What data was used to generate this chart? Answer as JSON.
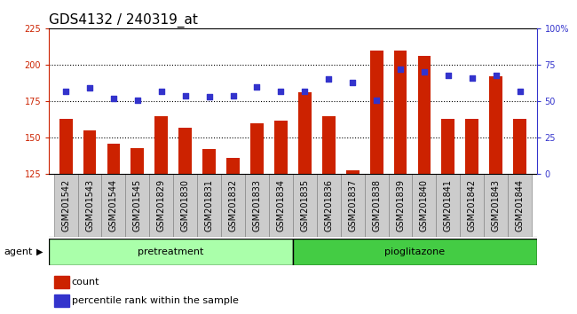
{
  "title": "GDS4132 / 240319_at",
  "categories": [
    "GSM201542",
    "GSM201543",
    "GSM201544",
    "GSM201545",
    "GSM201829",
    "GSM201830",
    "GSM201831",
    "GSM201832",
    "GSM201833",
    "GSM201834",
    "GSM201835",
    "GSM201836",
    "GSM201837",
    "GSM201838",
    "GSM201839",
    "GSM201840",
    "GSM201841",
    "GSM201842",
    "GSM201843",
    "GSM201844"
  ],
  "bar_values": [
    163,
    155,
    146,
    143,
    165,
    157,
    142,
    136,
    160,
    162,
    181,
    165,
    128,
    210,
    210,
    206,
    163,
    163,
    192,
    163
  ],
  "dot_values": [
    57,
    59,
    52,
    51,
    57,
    54,
    53,
    54,
    60,
    57,
    57,
    65,
    63,
    51,
    72,
    70,
    68,
    66,
    68,
    57
  ],
  "bar_color": "#cc2200",
  "dot_color": "#3333cc",
  "pretreatment_label": "pretreatment",
  "pioglitazone_label": "pioglitazone",
  "n_pretreatment": 10,
  "n_pioglitazone": 10,
  "agent_label": "agent",
  "legend_count": "count",
  "legend_percentile": "percentile rank within the sample",
  "ylim_left": [
    125,
    225
  ],
  "ylim_right": [
    0,
    100
  ],
  "yticks_left": [
    125,
    150,
    175,
    200,
    225
  ],
  "yticks_right": [
    0,
    25,
    50,
    75,
    100
  ],
  "grid_yticks": [
    150,
    175,
    200
  ],
  "pretreat_color": "#aaffaa",
  "pioglitazone_color": "#44cc44",
  "title_fontsize": 11,
  "tick_label_fontsize": 7,
  "agent_fontsize": 8,
  "legend_fontsize": 8
}
